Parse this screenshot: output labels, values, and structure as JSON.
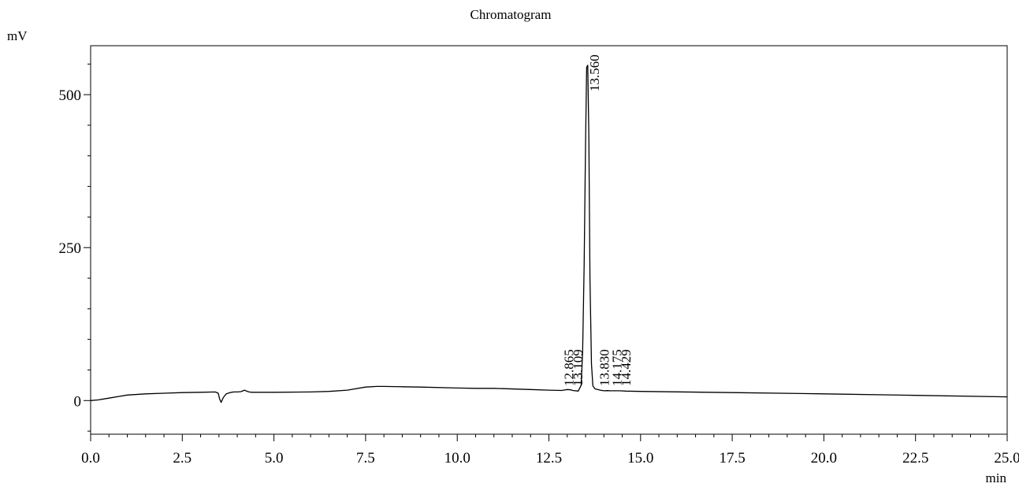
{
  "chart_data": {
    "type": "line",
    "title": "Chromatogram",
    "ylabel": "mV",
    "xlabel": "min",
    "xlim": [
      0,
      25
    ],
    "ylim": [
      -55,
      580
    ],
    "x_ticks": [
      0,
      2.5,
      5,
      7.5,
      10,
      12.5,
      15,
      17.5,
      20,
      22.5,
      25
    ],
    "x_tick_labels": [
      "0.0",
      "2.5",
      "5.0",
      "7.5",
      "10.0",
      "12.5",
      "15.0",
      "17.5",
      "20.0",
      "22.5",
      "25.0"
    ],
    "y_ticks": [
      0,
      250,
      500
    ],
    "y_tick_labels": [
      "0",
      "250",
      "500"
    ],
    "grid": false,
    "series": [
      {
        "color": "#000000",
        "x": [
          0.0,
          0.2,
          0.5,
          0.8,
          1.0,
          1.5,
          2.0,
          2.5,
          3.0,
          3.4,
          3.48,
          3.52,
          3.56,
          3.62,
          3.7,
          3.8,
          3.9,
          4.0,
          4.1,
          4.2,
          4.25,
          4.32,
          4.4,
          5.0,
          6.0,
          6.5,
          7.0,
          7.5,
          7.8,
          8.0,
          8.5,
          9.0,
          10.0,
          10.5,
          11.0,
          12.0,
          12.5,
          12.85,
          12.9,
          13.0,
          13.1,
          13.15,
          13.3,
          13.38,
          13.42,
          13.46,
          13.5,
          13.53,
          13.56,
          13.59,
          13.62,
          13.66,
          13.7,
          13.76,
          13.83,
          13.9,
          14.0,
          14.1,
          14.17,
          14.25,
          14.43,
          14.6,
          15.0,
          17.5,
          20.0,
          22.5,
          25.0
        ],
        "y": [
          0,
          1,
          4,
          7,
          9,
          11,
          12,
          13,
          13.5,
          14,
          12,
          2,
          -3,
          5,
          11,
          13,
          14,
          14,
          14.5,
          17,
          15.5,
          14,
          13.5,
          13.5,
          14,
          15,
          17,
          22,
          23,
          23,
          22.5,
          22,
          20.5,
          20,
          20,
          18,
          17,
          16.5,
          17,
          18,
          17.5,
          16.5,
          15.5,
          25,
          80,
          220,
          420,
          545,
          548,
          430,
          200,
          60,
          24,
          19,
          18,
          17,
          16,
          16.2,
          16,
          16,
          16,
          15.5,
          15,
          13,
          11,
          8.5,
          6
        ]
      }
    ],
    "peak_labels": [
      {
        "x": 12.865,
        "text": "12.865"
      },
      {
        "x": 13.109,
        "text": "13.109"
      },
      {
        "x": 13.56,
        "text": "13.560"
      },
      {
        "x": 13.83,
        "text": "13.830"
      },
      {
        "x": 14.175,
        "text": "14.175"
      },
      {
        "x": 14.429,
        "text": "14.429"
      }
    ]
  }
}
